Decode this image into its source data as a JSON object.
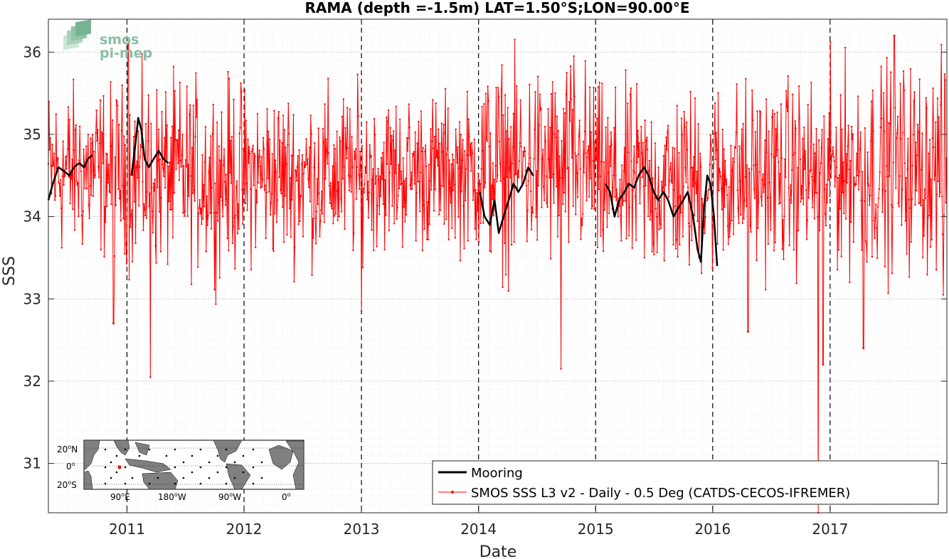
{
  "chart_data": {
    "type": "line",
    "title": "RAMA (depth =-1.5m) LAT=1.50°S;LON=90.00°E",
    "xlabel": "Date",
    "ylabel": "SSS",
    "xlim": [
      "2010-05-01",
      "2017-12-31"
    ],
    "ylim": [
      30.4,
      36.4
    ],
    "x_ticks": [
      "2011",
      "2012",
      "2013",
      "2014",
      "2015",
      "2016",
      "2017"
    ],
    "y_ticks": [
      31,
      32,
      33,
      34,
      35,
      36
    ],
    "year_boundaries": [
      "2011-01-01",
      "2012-01-01",
      "2013-01-01",
      "2014-01-01",
      "2015-01-01",
      "2016-01-01",
      "2017-01-01"
    ],
    "grid": "minor dotted",
    "legend_position": "bottom-right",
    "series": [
      {
        "name": "Mooring",
        "color": "#000000",
        "style": "thick line",
        "segments": [
          [
            [
              "2010-05-01",
              34.2
            ],
            [
              "2010-05-15",
              34.4
            ],
            [
              "2010-06-01",
              34.6
            ],
            [
              "2010-06-20",
              34.55
            ],
            [
              "2010-07-05",
              34.5
            ],
            [
              "2010-07-20",
              34.6
            ],
            [
              "2010-08-05",
              34.65
            ],
            [
              "2010-08-20",
              34.6
            ],
            [
              "2010-09-01",
              34.7
            ],
            [
              "2010-09-15",
              34.75
            ]
          ],
          [
            [
              "2011-01-15",
              34.5
            ],
            [
              "2011-01-25",
              34.8
            ],
            [
              "2011-02-05",
              35.2
            ],
            [
              "2011-02-15",
              35.05
            ],
            [
              "2011-02-25",
              34.7
            ],
            [
              "2011-03-10",
              34.6
            ],
            [
              "2011-03-25",
              34.7
            ],
            [
              "2011-04-10",
              34.8
            ],
            [
              "2011-04-25",
              34.7
            ],
            [
              "2011-05-10",
              34.65
            ]
          ],
          [
            [
              "2014-01-05",
              34.3
            ],
            [
              "2014-01-20",
              34.0
            ],
            [
              "2014-02-05",
              33.9
            ],
            [
              "2014-02-20",
              34.2
            ],
            [
              "2014-03-05",
              33.8
            ],
            [
              "2014-03-20",
              34.0
            ],
            [
              "2014-04-05",
              34.2
            ],
            [
              "2014-04-20",
              34.4
            ],
            [
              "2014-05-05",
              34.3
            ],
            [
              "2014-05-20",
              34.4
            ],
            [
              "2014-06-05",
              34.6
            ],
            [
              "2014-06-20",
              34.5
            ]
          ],
          [
            [
              "2015-02-01",
              34.4
            ],
            [
              "2015-02-15",
              34.3
            ],
            [
              "2015-03-01",
              34.0
            ],
            [
              "2015-03-15",
              34.2
            ],
            [
              "2015-04-01",
              34.3
            ],
            [
              "2015-04-15",
              34.4
            ],
            [
              "2015-05-01",
              34.35
            ],
            [
              "2015-05-15",
              34.5
            ],
            [
              "2015-06-01",
              34.6
            ],
            [
              "2015-06-15",
              34.5
            ],
            [
              "2015-07-01",
              34.3
            ],
            [
              "2015-07-15",
              34.2
            ],
            [
              "2015-08-01",
              34.3
            ],
            [
              "2015-08-15",
              34.2
            ],
            [
              "2015-09-01",
              34.0
            ],
            [
              "2015-09-15",
              34.1
            ],
            [
              "2015-10-01",
              34.2
            ],
            [
              "2015-10-15",
              34.3
            ],
            [
              "2015-11-01",
              34.0
            ],
            [
              "2015-11-15",
              33.6
            ],
            [
              "2015-11-25",
              33.45
            ],
            [
              "2015-12-05",
              34.1
            ],
            [
              "2015-12-15",
              34.5
            ],
            [
              "2015-12-25",
              34.4
            ],
            [
              "2016-01-05",
              34.0
            ],
            [
              "2016-01-15",
              33.4
            ]
          ]
        ]
      },
      {
        "name": "SMOS SSS L3 v2 - Daily - 0.5 Deg (CATDS-CECOS-IFREMER)",
        "color": "#ff0000",
        "style": "thin line with point markers",
        "mean_by_year": [
          {
            "year": 2010,
            "mean": 34.55,
            "spread": 1.0
          },
          {
            "year": 2011,
            "mean": 34.5,
            "spread": 1.1
          },
          {
            "year": 2012,
            "mean": 34.5,
            "spread": 1.0
          },
          {
            "year": 2013,
            "mean": 34.55,
            "spread": 0.9
          },
          {
            "year": 2014,
            "mean": 34.6,
            "spread": 1.2
          },
          {
            "year": 2015,
            "mean": 34.4,
            "spread": 1.1
          },
          {
            "year": 2016,
            "mean": 34.5,
            "spread": 1.1
          },
          {
            "year": 2017,
            "mean": 34.6,
            "spread": 1.2
          }
        ],
        "extremes": [
          [
            "2011-01-05",
            36.1
          ],
          [
            "2011-03-15",
            32.05
          ],
          [
            "2010-11-20",
            32.7
          ],
          [
            "2013-01-01",
            32.85
          ],
          [
            "2014-09-15",
            32.15
          ],
          [
            "2014-10-25",
            35.95
          ],
          [
            "2016-04-20",
            32.6
          ],
          [
            "2016-11-25",
            30.4
          ],
          [
            "2016-12-10",
            32.2
          ],
          [
            "2017-04-15",
            32.4
          ],
          [
            "2017-07-20",
            36.2
          ],
          [
            "2017-12-20",
            33.05
          ]
        ]
      }
    ]
  },
  "title": "RAMA (depth =-1.5m) LAT=1.50°S;LON=90.00°E",
  "axes": {
    "xlabel": "Date",
    "ylabel": "SSS",
    "x_ticks": [
      "2011",
      "2012",
      "2013",
      "2014",
      "2015",
      "2016",
      "2017"
    ],
    "y_ticks": [
      "31",
      "32",
      "33",
      "34",
      "35",
      "36"
    ]
  },
  "legend": {
    "items": [
      {
        "label": "Mooring",
        "color": "#000000"
      },
      {
        "label": "SMOS SSS L3 v2 - Daily - 0.5 Deg (CATDS-CECOS-IFREMER)",
        "color": "#ff0000"
      }
    ]
  },
  "logo": {
    "line1": "smos",
    "line2": "pi-mep",
    "color": "#6fae8c"
  },
  "inset_map": {
    "lat_labels": [
      "20",
      "N",
      "0",
      "20",
      "S"
    ],
    "lon_labels": [
      "90",
      "E",
      "180",
      "W",
      "90",
      "W",
      "0"
    ],
    "degree_symbol": "o",
    "land_color": "#808080",
    "station_color": "#ff0000"
  }
}
